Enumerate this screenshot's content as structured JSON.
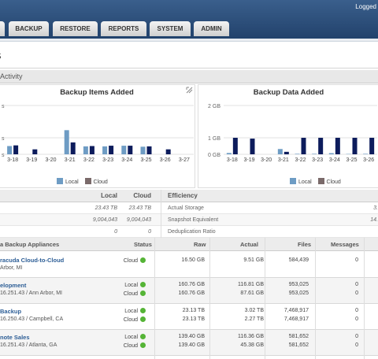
{
  "header": {
    "logged_text": "Logged",
    "tabs": [
      "BACKUP",
      "RESTORE",
      "REPORTS",
      "SYSTEM",
      "ADMIN"
    ]
  },
  "page_title": "s",
  "activity_label": "Activity",
  "resize_icon": "resize-icon",
  "chart_data": [
    {
      "type": "bar",
      "title": "Backup Items Added",
      "categories": [
        "3-18",
        "3-19",
        "3-20",
        "3-21",
        "3-22",
        "3-23",
        "3-24",
        "3-25",
        "3-26",
        "3-27"
      ],
      "y_tick_labels": [
        "s",
        "s",
        "s"
      ],
      "series": [
        {
          "name": "Local",
          "color": "#6e9cc4",
          "values": [
            0.25,
            0,
            0,
            0.73,
            0.24,
            0.24,
            0.26,
            0.23,
            0,
            0
          ]
        },
        {
          "name": "Cloud",
          "color": "#0d1c5c",
          "values": [
            0.27,
            0.15,
            0,
            0.36,
            0.25,
            0.26,
            0.26,
            0.24,
            0.15,
            0
          ]
        }
      ],
      "legend": [
        "Local",
        "Cloud"
      ],
      "legend_placement": "bottom"
    },
    {
      "type": "bar",
      "title": "Backup Data Added",
      "categories": [
        "3-18",
        "3-19",
        "3-20",
        "3-21",
        "3-22",
        "3-23",
        "3-24",
        "3-25",
        "3-26"
      ],
      "y_tick_labels": [
        "2 GB",
        "1 GB",
        "0 GB"
      ],
      "series": [
        {
          "name": "Local",
          "color": "#6e9cc4",
          "values": [
            0.08,
            0,
            0,
            0.32,
            0.03,
            0.03,
            0.07,
            0.02,
            0.03
          ]
        },
        {
          "name": "Cloud",
          "color": "#0d1c5c",
          "values": [
            1.0,
            0.95,
            0,
            0.15,
            1.0,
            1.0,
            1.0,
            1.0,
            1.0
          ]
        }
      ],
      "legend": [
        "Local",
        "Cloud"
      ],
      "legend_placement": "bottom"
    }
  ],
  "legend_labels": {
    "local": "Local",
    "cloud": "Cloud"
  },
  "colors": {
    "local": "#6e9cc4",
    "cloud": "#0d1c5c",
    "status_ok": "#55b436",
    "link": "#2d5e96"
  },
  "stats": {
    "col_local": "Local",
    "col_cloud": "Cloud",
    "rows": [
      {
        "local": "23.43 TB",
        "cloud": "23.43 TB"
      },
      {
        "local": "9,004,043",
        "cloud": "9,004,043"
      },
      {
        "local": "0",
        "cloud": "0"
      }
    ],
    "efficiency_title": "Efficiency",
    "efficiency_rows": [
      {
        "label": "Actual Storage",
        "value": "3."
      },
      {
        "label": "Snapshot Equivalent",
        "value": "14."
      },
      {
        "label": "Deduplication Ratio",
        "value": ""
      }
    ]
  },
  "appliances": {
    "title": "a Backup Appliances",
    "columns": {
      "status": "Status",
      "raw": "Raw",
      "actual": "Actual",
      "files": "Files",
      "messages": "Messages"
    },
    "rows": [
      {
        "name": "racuda Cloud-to-Cloud",
        "loc": "Arbor, MI",
        "lines": [
          {
            "status": "Cloud",
            "raw": "16.50 GB",
            "actual": "9.51 GB",
            "files": "584,439",
            "messages": "0"
          }
        ]
      },
      {
        "name": "elopment",
        "loc": "16.251.43 / Ann Arbor, MI",
        "lines": [
          {
            "status": "Local",
            "raw": "160.76 GB",
            "actual": "116.81 GB",
            "files": "953,025",
            "messages": "0"
          },
          {
            "status": "Cloud",
            "raw": "160.76 GB",
            "actual": "87.61 GB",
            "files": "953,025",
            "messages": "0"
          }
        ]
      },
      {
        "name": "Backup",
        "loc": "16.250.43 / Campbell, CA",
        "lines": [
          {
            "status": "Local",
            "raw": "23.13 TB",
            "actual": "3.02 TB",
            "files": "7,468,917",
            "messages": "0"
          },
          {
            "status": "Cloud",
            "raw": "23.13 TB",
            "actual": "2.27 TB",
            "files": "7,468,917",
            "messages": "0"
          }
        ]
      },
      {
        "name": "note Sales",
        "loc": "16.251.43 / Atlanta, GA",
        "lines": [
          {
            "status": "Local",
            "raw": "139.40 GB",
            "actual": "116.36 GB",
            "files": "581,652",
            "messages": "0"
          },
          {
            "status": "Cloud",
            "raw": "139.40 GB",
            "actual": "45.38 GB",
            "files": "581,652",
            "messages": "0"
          }
        ]
      }
    ]
  }
}
